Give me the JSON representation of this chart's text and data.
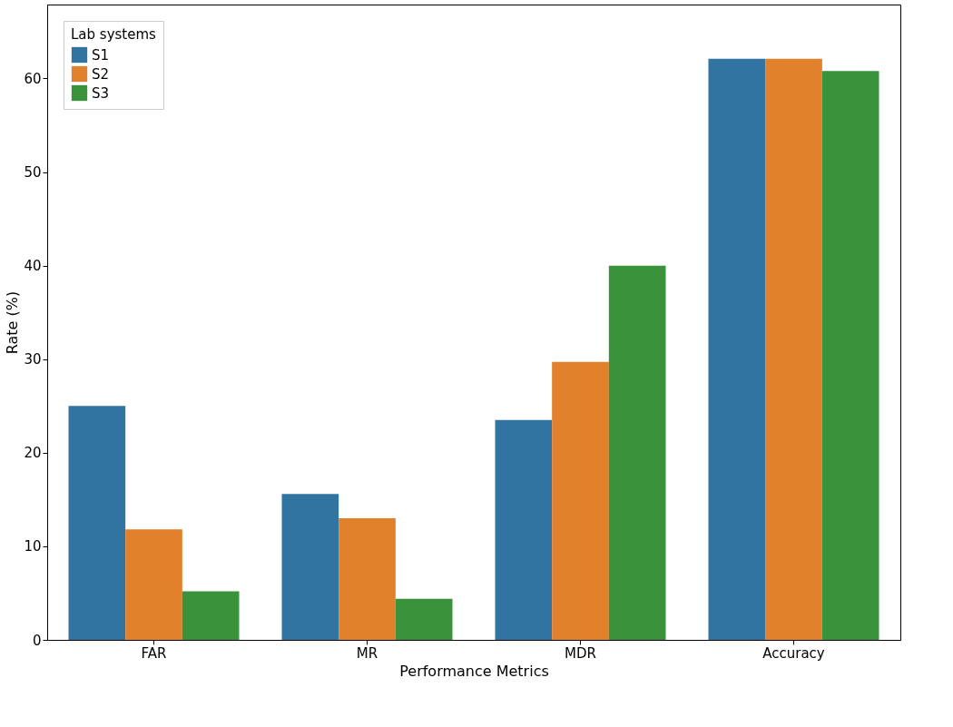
{
  "chart_data": {
    "type": "bar",
    "xlabel": "Performance Metrics",
    "ylabel": "Rate (%)",
    "legend_title": "Lab systems",
    "legend": "top left",
    "grid": false,
    "categories": [
      "FAR",
      "MR",
      "MDR",
      "Accuracy"
    ],
    "series": [
      {
        "name": "S1",
        "color": "#3274a1",
        "values": [
          25.0,
          15.6,
          23.5,
          62.1
        ]
      },
      {
        "name": "S2",
        "color": "#e1812c",
        "values": [
          11.8,
          13.0,
          29.7,
          62.1
        ]
      },
      {
        "name": "S3",
        "color": "#3a923a",
        "values": [
          5.2,
          4.4,
          40.0,
          60.8
        ]
      }
    ],
    "ylim": [
      0,
      67.9
    ],
    "yticks": [
      0,
      10,
      20,
      30,
      40,
      50,
      60
    ]
  }
}
